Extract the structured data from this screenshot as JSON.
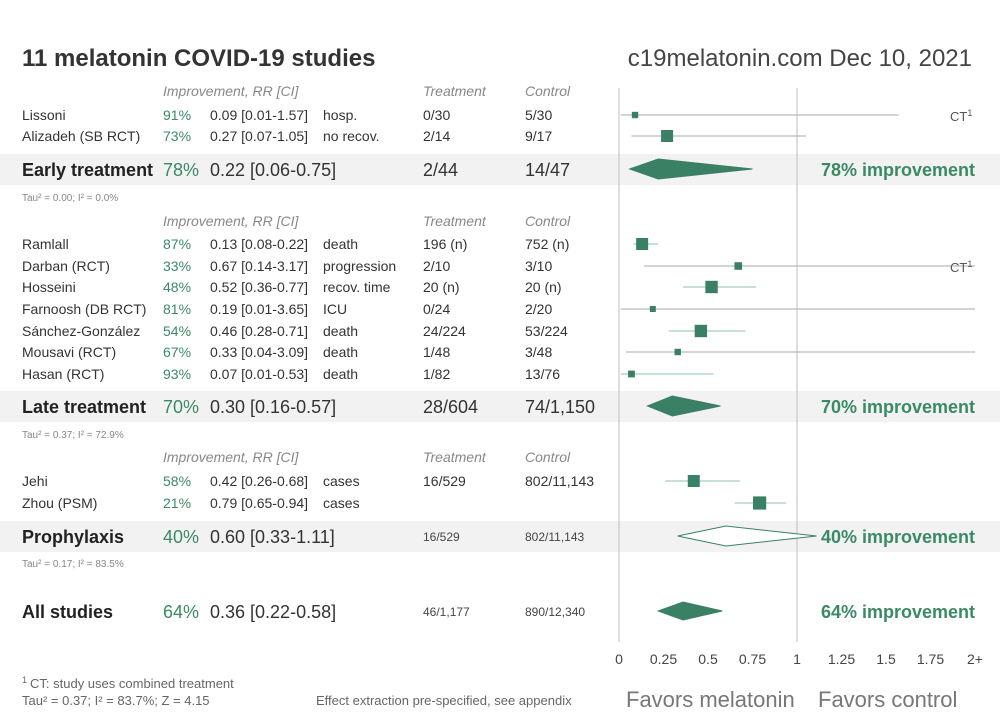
{
  "header": {
    "title": "11 melatonin COVID-19 studies",
    "site": "c19melatonin.com Dec 10, 2021"
  },
  "col_headers": {
    "improvement": "Improvement, RR [CI]",
    "treatment": "Treatment",
    "control": "Control"
  },
  "chart_data": {
    "type": "forest",
    "x_axis": {
      "ticks": [
        "0",
        "0.25",
        "0.5",
        "0.75",
        "1",
        "1.25",
        "1.5",
        "1.75",
        "2+"
      ],
      "tick_values": [
        0,
        0.25,
        0.5,
        0.75,
        1,
        1.25,
        1.5,
        1.75,
        2
      ],
      "range": [
        0,
        2
      ],
      "reference_line": 1,
      "label_left": "Favors melatonin",
      "label_right": "Favors control"
    },
    "groups": [
      {
        "name": "Early treatment",
        "improvement": "78%",
        "rr_text": "0.22 [0.06-0.75]",
        "rr": 0.22,
        "ci_low": 0.06,
        "ci_high": 0.75,
        "treatment": "2/44",
        "control": "14/47",
        "result": "78% improvement",
        "filled": true,
        "tau": "Tau² = 0.00; I² = 0.0%",
        "studies": [
          {
            "name": "Lissoni",
            "improvement": "91%",
            "rr_text": "0.09 [0.01-1.57]",
            "rr": 0.09,
            "ci_low": 0.01,
            "ci_high": 1.57,
            "outcome": "hosp.",
            "treatment": "0/30",
            "control": "5/30",
            "weight": 0.3,
            "ct": true
          },
          {
            "name": "Alizadeh (SB RCT)",
            "improvement": "73%",
            "rr_text": "0.27 [0.07-1.05]",
            "rr": 0.27,
            "ci_low": 0.07,
            "ci_high": 1.05,
            "outcome": "no recov.",
            "treatment": "2/14",
            "control": "9/17",
            "weight": 1.0,
            "ct": false
          }
        ]
      },
      {
        "name": "Late treatment",
        "improvement": "70%",
        "rr_text": "0.30 [0.16-0.57]",
        "rr": 0.3,
        "ci_low": 0.16,
        "ci_high": 0.57,
        "treatment": "28/604",
        "control": "74/1,150",
        "result": "70% improvement",
        "filled": true,
        "tau": "Tau² = 0.37; I² = 72.9%",
        "studies": [
          {
            "name": "Ramlall",
            "improvement": "87%",
            "rr_text": "0.13 [0.08-0.22]",
            "rr": 0.13,
            "ci_low": 0.08,
            "ci_high": 0.22,
            "outcome": "death",
            "treatment": "196 (n)",
            "control": "752 (n)",
            "weight": 1.0,
            "ct": false
          },
          {
            "name": "Darban (RCT)",
            "improvement": "33%",
            "rr_text": "0.67 [0.14-3.17]",
            "rr": 0.67,
            "ci_low": 0.14,
            "ci_high": 3.17,
            "outcome": "progression",
            "treatment": "2/10",
            "control": "3/10",
            "weight": 0.45,
            "ct": true
          },
          {
            "name": "Hosseini",
            "improvement": "48%",
            "rr_text": "0.52 [0.36-0.77]",
            "rr": 0.52,
            "ci_low": 0.36,
            "ci_high": 0.77,
            "outcome": "recov. time",
            "treatment": "20 (n)",
            "control": "20 (n)",
            "weight": 1.05,
            "ct": false
          },
          {
            "name": "Farnoosh (DB RCT)",
            "improvement": "81%",
            "rr_text": "0.19 [0.01-3.65]",
            "rr": 0.19,
            "ci_low": 0.01,
            "ci_high": 3.65,
            "outcome": "ICU",
            "treatment": "0/24",
            "control": "2/20",
            "weight": 0.25,
            "ct": false
          },
          {
            "name": "Sánchez-González",
            "improvement": "54%",
            "rr_text": "0.46 [0.28-0.71]",
            "rr": 0.46,
            "ci_low": 0.28,
            "ci_high": 0.71,
            "outcome": "death",
            "treatment": "24/224",
            "control": "53/224",
            "weight": 1.05,
            "ct": false
          },
          {
            "name": "Mousavi (RCT)",
            "improvement": "67%",
            "rr_text": "0.33 [0.04-3.09]",
            "rr": 0.33,
            "ci_low": 0.04,
            "ci_high": 3.09,
            "outcome": "death",
            "treatment": "1/48",
            "control": "3/48",
            "weight": 0.3,
            "ct": false
          },
          {
            "name": "Hasan (RCT)",
            "improvement": "93%",
            "rr_text": "0.07 [0.01-0.53]",
            "rr": 0.07,
            "ci_low": 0.01,
            "ci_high": 0.53,
            "outcome": "death",
            "treatment": "1/82",
            "control": "13/76",
            "weight": 0.35,
            "ct": false
          }
        ]
      },
      {
        "name": "Prophylaxis",
        "improvement": "40%",
        "rr_text": "0.60 [0.33-1.11]",
        "rr": 0.6,
        "ci_low": 0.33,
        "ci_high": 1.11,
        "treatment": "16/529",
        "control": "802/11,143",
        "result": "40% improvement",
        "filled": false,
        "tau": "Tau² = 0.17; I² = 83.5%",
        "studies": [
          {
            "name": "Jehi",
            "improvement": "58%",
            "rr_text": "0.42 [0.26-0.68]",
            "rr": 0.42,
            "ci_low": 0.26,
            "ci_high": 0.68,
            "outcome": "cases",
            "treatment": "16/529",
            "control": "802/11,143",
            "weight": 1.0,
            "ct": false
          },
          {
            "name": "Zhou (PSM)",
            "improvement": "21%",
            "rr_text": "0.79 [0.65-0.94]",
            "rr": 0.79,
            "ci_low": 0.65,
            "ci_high": 0.94,
            "outcome": "cases",
            "treatment": "",
            "control": "",
            "weight": 1.15,
            "ct": false
          }
        ]
      }
    ],
    "overall": {
      "name": "All studies",
      "improvement": "64%",
      "rr_text": "0.36 [0.22-0.58]",
      "rr": 0.36,
      "ci_low": 0.22,
      "ci_high": 0.58,
      "treatment": "46/1,177",
      "control": "890/12,340",
      "result": "64% improvement"
    }
  },
  "ct_label": "CT",
  "ct_sup": "1",
  "footer": {
    "ct_note_sup": "1",
    "ct_note": "CT: study uses combined treatment",
    "stats": "Tau² = 0.37; I² = 83.7%; Z = 4.15",
    "extraction": "Effect extraction pre-specified, see appendix"
  },
  "colors": {
    "accent": "#3a8a66",
    "marker": "#3a8065",
    "ci_gray": "#aaaaaa",
    "ci_teal": "#8fc1b5",
    "band": "#f2f2f2"
  }
}
